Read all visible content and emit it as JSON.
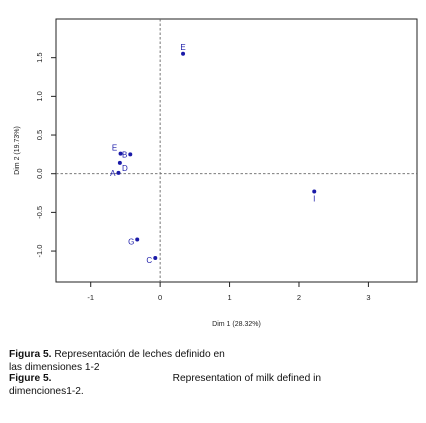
{
  "chart_data": {
    "type": "scatter",
    "title": "",
    "xlabel": "Dim 1 (28.32%)",
    "ylabel": "Dim 2 (19.73%)",
    "xlim": [
      -1.5,
      3.7
    ],
    "ylim": [
      -1.4,
      2.0
    ],
    "xticks": [
      -1,
      0,
      1,
      2,
      3
    ],
    "xtick_labels": [
      "-1",
      "0",
      "1",
      "2",
      "3"
    ],
    "yticks": [
      -1.0,
      -0.5,
      0.0,
      0.5,
      1.0,
      1.5
    ],
    "ytick_labels": [
      "-1.0",
      "-0.5",
      "0.0",
      "0.5",
      "1.0",
      "1.5"
    ],
    "reference_lines": {
      "x": 0,
      "y": 0
    },
    "point_color": "#1a1aa8",
    "points": [
      {
        "label": "E",
        "x": 0.33,
        "y": 1.55,
        "label_pos": "above"
      },
      {
        "label": "E",
        "x": -0.57,
        "y": 0.26,
        "label_pos": "above-left"
      },
      {
        "label": "B",
        "x": -0.43,
        "y": 0.25,
        "label_pos": "left"
      },
      {
        "label": "D",
        "x": -0.58,
        "y": 0.14,
        "label_pos": "below-right"
      },
      {
        "label": "A",
        "x": -0.6,
        "y": 0.01,
        "label_pos": "left"
      },
      {
        "label": "I",
        "x": 2.22,
        "y": -0.23,
        "label_pos": "below"
      },
      {
        "label": "G",
        "x": -0.33,
        "y": -0.85,
        "label_pos": "below-left"
      },
      {
        "label": "C",
        "x": -0.07,
        "y": -1.09,
        "label_pos": "below-left"
      }
    ]
  },
  "caption_es": {
    "label": "Figura 5.",
    "text_line1": "Representación de leches definido en",
    "text_line2": "las dimensiones 1-2"
  },
  "caption_en": {
    "label": "Figure 5.",
    "text_line1": "Representation of milk defined in",
    "text_line2": "dimenciones1-2."
  }
}
